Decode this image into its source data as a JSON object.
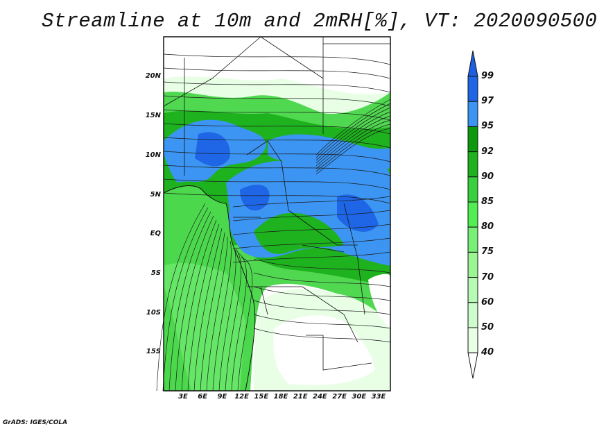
{
  "title": "Streamline at 10m and 2mRH[%], VT: 2020090500",
  "credit": "GrADS: IGES/COLA",
  "lat_ticks": [
    "20N",
    "15N",
    "10N",
    "5N",
    "EQ",
    "5S",
    "10S",
    "15S"
  ],
  "lon_ticks": [
    "3E",
    "6E",
    "9E",
    "12E",
    "15E",
    "18E",
    "21E",
    "24E",
    "27E",
    "30E",
    "33E"
  ],
  "colorbar": {
    "labels": [
      "99",
      "97",
      "95",
      "92",
      "90",
      "85",
      "80",
      "75",
      "70",
      "60",
      "50",
      "40"
    ],
    "colors": [
      "#1c5fe0",
      "#1e66e6",
      "#3c95f2",
      "#0c9a0c",
      "#1eb21e",
      "#38d03c",
      "#50ee50",
      "#78f078",
      "#9af592",
      "#b6fab4",
      "#cdfdcc",
      "#e8ffe6",
      "#ffffff"
    ]
  },
  "chart_data": {
    "type": "map",
    "title": "Streamline at 10m and 2mRH[%], VT: 2020090500",
    "variable": "2m relative humidity (%) with 10m streamlines",
    "lon_range": [
      0,
      35
    ],
    "lat_range": [
      -20,
      25
    ],
    "levels": [
      40,
      50,
      60,
      70,
      75,
      80,
      85,
      90,
      92,
      95,
      97,
      99
    ]
  }
}
